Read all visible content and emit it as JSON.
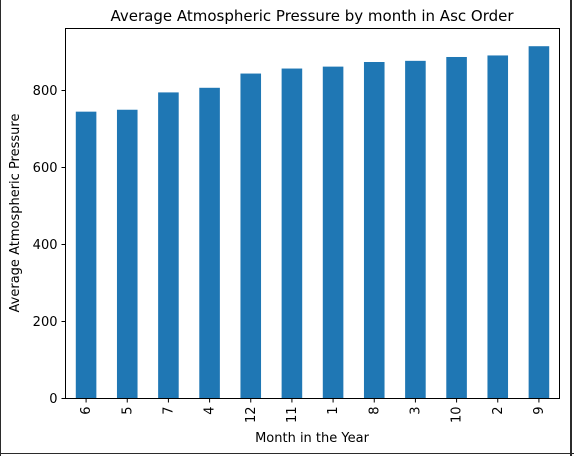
{
  "chart_data": {
    "type": "bar",
    "title": "Average Atmospheric Pressure by month in Asc Order",
    "xlabel": "Month in the Year",
    "ylabel": "Average Atmospheric Pressure",
    "categories": [
      "6",
      "5",
      "7",
      "4",
      "12",
      "11",
      "1",
      "8",
      "3",
      "10",
      "2",
      "9"
    ],
    "values": [
      745,
      750,
      795,
      807,
      844,
      857,
      862,
      874,
      877,
      887,
      891,
      915
    ],
    "yticks": [
      0,
      200,
      400,
      600,
      800
    ],
    "ylim": [
      0,
      961
    ],
    "grid": false,
    "legend": "none",
    "bar_color": "#1f77b4"
  }
}
